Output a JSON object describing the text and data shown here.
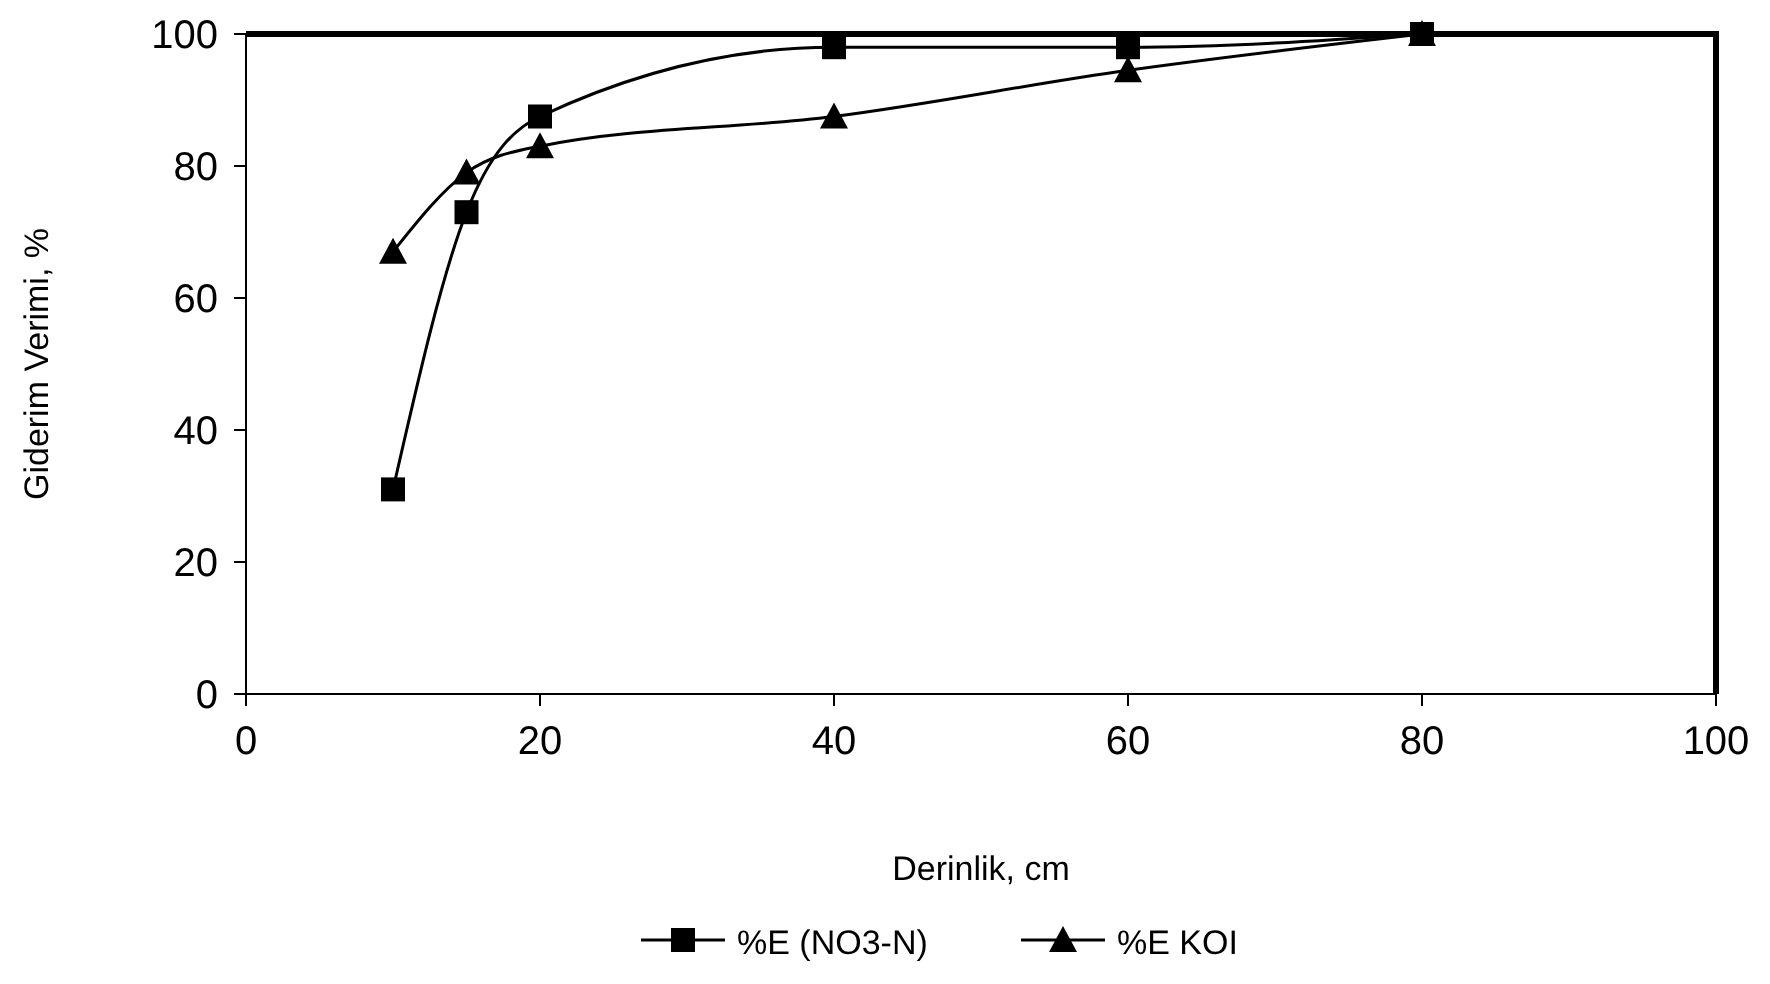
{
  "chart_data": {
    "type": "line",
    "xlabel": "Derinlik, cm",
    "ylabel": "Giderim Verimi, %",
    "x": [
      10,
      15,
      20,
      40,
      60,
      80
    ],
    "series": [
      {
        "name": "%E (NO3-N)",
        "color": "#000000",
        "marker": "square",
        "values": [
          31,
          73,
          87.5,
          98,
          98,
          100
        ]
      },
      {
        "name": "%E KOI",
        "color": "#000000",
        "marker": "triangle",
        "values": [
          67,
          79,
          83,
          87.5,
          94.5,
          100
        ]
      }
    ],
    "xlim": [
      0,
      100
    ],
    "xticks": [
      0,
      20,
      40,
      60,
      80,
      100
    ],
    "ylim": [
      0,
      100
    ],
    "yticks": [
      0,
      20,
      40,
      60,
      80,
      100
    ],
    "grid": false,
    "legend": "bottom"
  }
}
